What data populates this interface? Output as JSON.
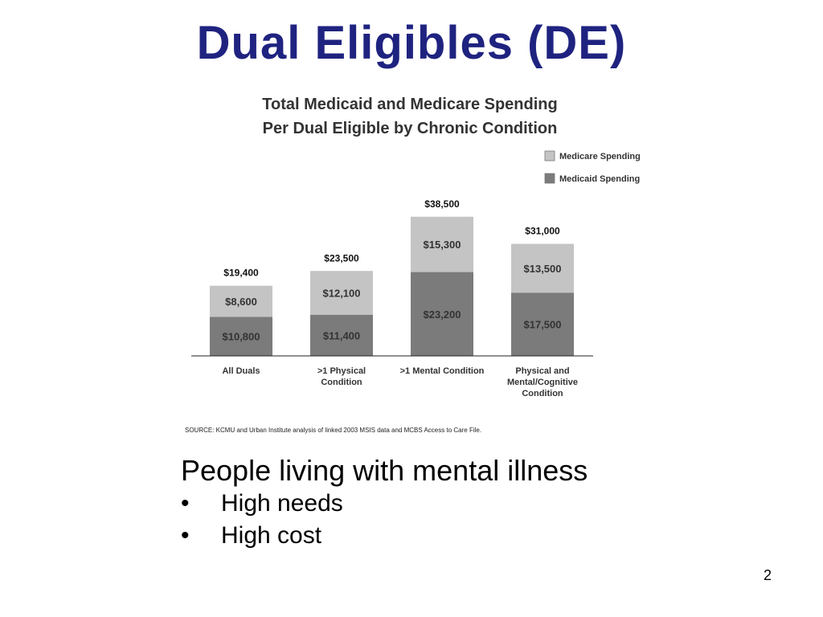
{
  "slide": {
    "title": "Dual Eligibles (DE)",
    "page_number": "2"
  },
  "body": {
    "lead": "People living with mental illness",
    "bullets": [
      "High needs",
      "High cost"
    ],
    "bullet_symbol": "•"
  },
  "colors": {
    "title": "#1f2380",
    "medicare": "#c4c4c4",
    "medicaid": "#7b7b7b",
    "chart_text": "#333333"
  },
  "chart_data": {
    "type": "bar",
    "stacked": true,
    "title": "Total Medicaid and Medicare Spending",
    "subtitle": "Per Dual Eligible by Chronic Condition",
    "categories": [
      [
        "All Duals"
      ],
      [
        ">1 Physical",
        "Condition"
      ],
      [
        ">1 Mental Condition"
      ],
      [
        "Physical and",
        "Mental/Cognitive",
        "Condition"
      ]
    ],
    "series": [
      {
        "name": "Medicaid Spending",
        "values": [
          10800,
          11400,
          23200,
          17500
        ],
        "labels": [
          "$10,800",
          "$11,400",
          "$23,200",
          "$17,500"
        ]
      },
      {
        "name": "Medicare Spending",
        "values": [
          8600,
          12100,
          15300,
          13500
        ],
        "labels": [
          "$8,600",
          "$12,100",
          "$15,300",
          "$13,500"
        ]
      }
    ],
    "totals": [
      19400,
      23500,
      38500,
      31000
    ],
    "total_labels": [
      "$19,400",
      "$23,500",
      "$38,500",
      "$31,000"
    ],
    "legend": [
      "Medicare Spending",
      "Medicaid Spending"
    ],
    "legend_position": "top-right",
    "ylim": [
      0,
      40000
    ],
    "grid": false,
    "source": "SOURCE: KCMU and Urban Institute analysis of linked 2003 MSIS data and MCBS Access to Care File."
  }
}
